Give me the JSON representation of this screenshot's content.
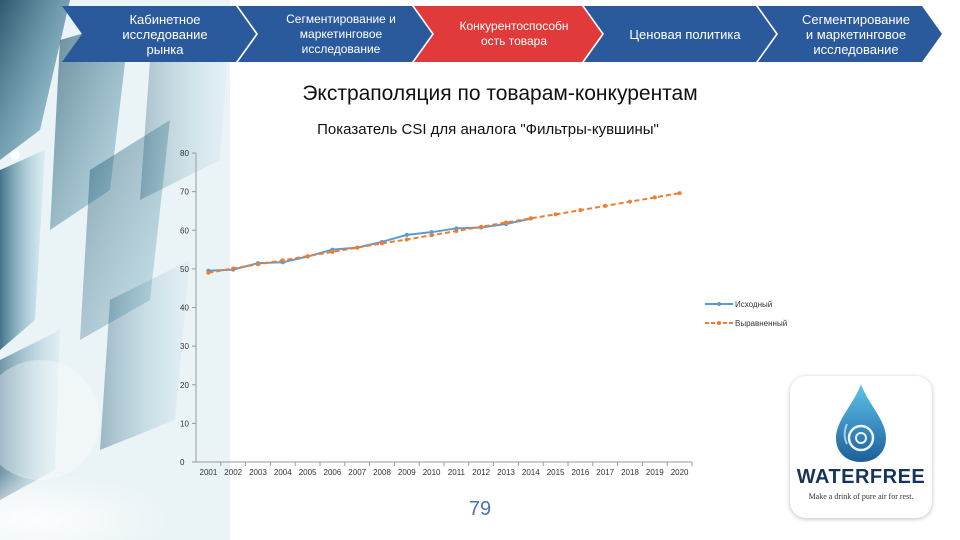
{
  "nav": {
    "steps": [
      {
        "label": "Кабинетное исследование рынка",
        "color": "#2a5a9c"
      },
      {
        "label": "Сегментирование и маркетинговое исследование",
        "color": "#2a5a9c"
      },
      {
        "label": "Конкурентоспособн ость товара",
        "color": "#e03a3a"
      },
      {
        "label": "Ценовая политика",
        "color": "#2a5a9c"
      },
      {
        "label": "Сегментирование и маркетинговое исследование",
        "color": "#2a5a9c"
      }
    ]
  },
  "slide": {
    "title": "Экстраполяция по товарам-конкурентам",
    "page_number": "79"
  },
  "logo": {
    "icon": "water-drop-icon",
    "wordmark": "WATERFREE",
    "tagline": "Make a drink of pure air for rest."
  },
  "chart_data": {
    "type": "line",
    "title": "Показатель CSI для аналога \"Фильтры-кувшины\"",
    "x": [
      "2001",
      "2002",
      "2003",
      "2004",
      "2005",
      "2006",
      "2007",
      "2008",
      "2009",
      "2010",
      "2011",
      "2012",
      "2013",
      "2014",
      "2015",
      "2016",
      "2017",
      "2018",
      "2019",
      "2020"
    ],
    "ylim": [
      0,
      80
    ],
    "yticks": [
      0,
      10,
      20,
      30,
      40,
      50,
      60,
      70,
      80
    ],
    "grid": false,
    "legend_position": "right",
    "series": [
      {
        "name": "Исходный",
        "color": "#5b9bd5",
        "style": "solid",
        "values": [
          49.5,
          49.8,
          51.5,
          51.7,
          53.2,
          55.0,
          55.5,
          57.0,
          58.8,
          59.5,
          60.5,
          60.7,
          61.6,
          63.0,
          null,
          null,
          null,
          null,
          null,
          null
        ]
      },
      {
        "name": "Выравненный",
        "color": "#ed7d31",
        "style": "dashed",
        "values": [
          49.0,
          50.1,
          51.2,
          52.2,
          53.3,
          54.4,
          55.5,
          56.6,
          57.6,
          58.7,
          59.8,
          60.9,
          62.0,
          63.1,
          64.1,
          65.2,
          66.3,
          67.4,
          68.5,
          69.6
        ]
      }
    ]
  }
}
